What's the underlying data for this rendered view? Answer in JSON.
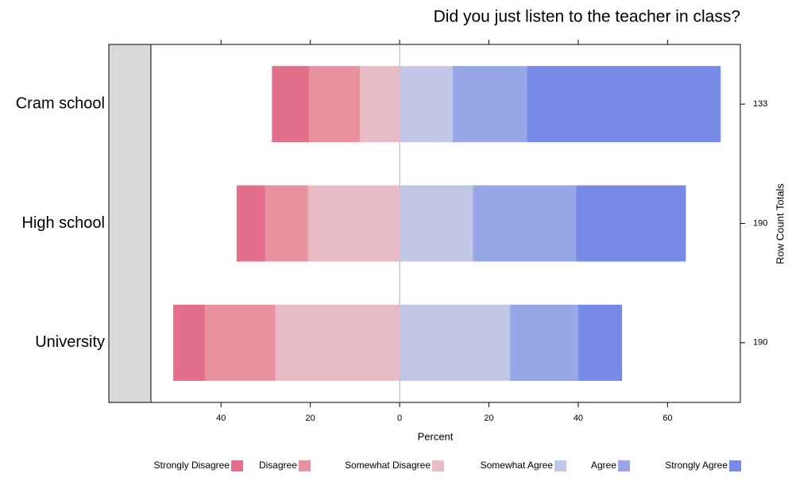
{
  "chart_data": {
    "type": "diverging-bar",
    "title": "Did you just listen to the teacher in class?",
    "xlabel": "Percent",
    "y2label": "Row Count Totals",
    "categories": [
      "Cram school",
      "High school",
      "University"
    ],
    "row_totals": [
      133,
      190,
      190
    ],
    "series": [
      {
        "name": "Strongly Disagree",
        "color": "#e36f8a",
        "values": [
          -8.3,
          -6.4,
          -7.1
        ]
      },
      {
        "name": "Disagree",
        "color": "#e8919f",
        "values": [
          -11.4,
          -9.6,
          -15.8
        ]
      },
      {
        "name": "Somewhat Disagree",
        "color": "#e9bcc5",
        "values": [
          -8.9,
          -20.5,
          -27.8
        ]
      },
      {
        "name": "Somewhat Agree",
        "color": "#c2c6e6",
        "values": [
          11.9,
          16.4,
          24.7
        ]
      },
      {
        "name": "Agree",
        "color": "#97a6e6",
        "values": [
          16.6,
          23.1,
          15.3
        ]
      },
      {
        "name": "Strongly Agree",
        "color": "#768ae6",
        "values": [
          43.4,
          24.6,
          9.8
        ]
      }
    ],
    "xlim": [
      -55.7,
      76.3
    ],
    "xticks": [
      {
        "value": -40,
        "label": "40"
      },
      {
        "value": -20,
        "label": "20"
      },
      0,
      20,
      40,
      60
    ]
  }
}
